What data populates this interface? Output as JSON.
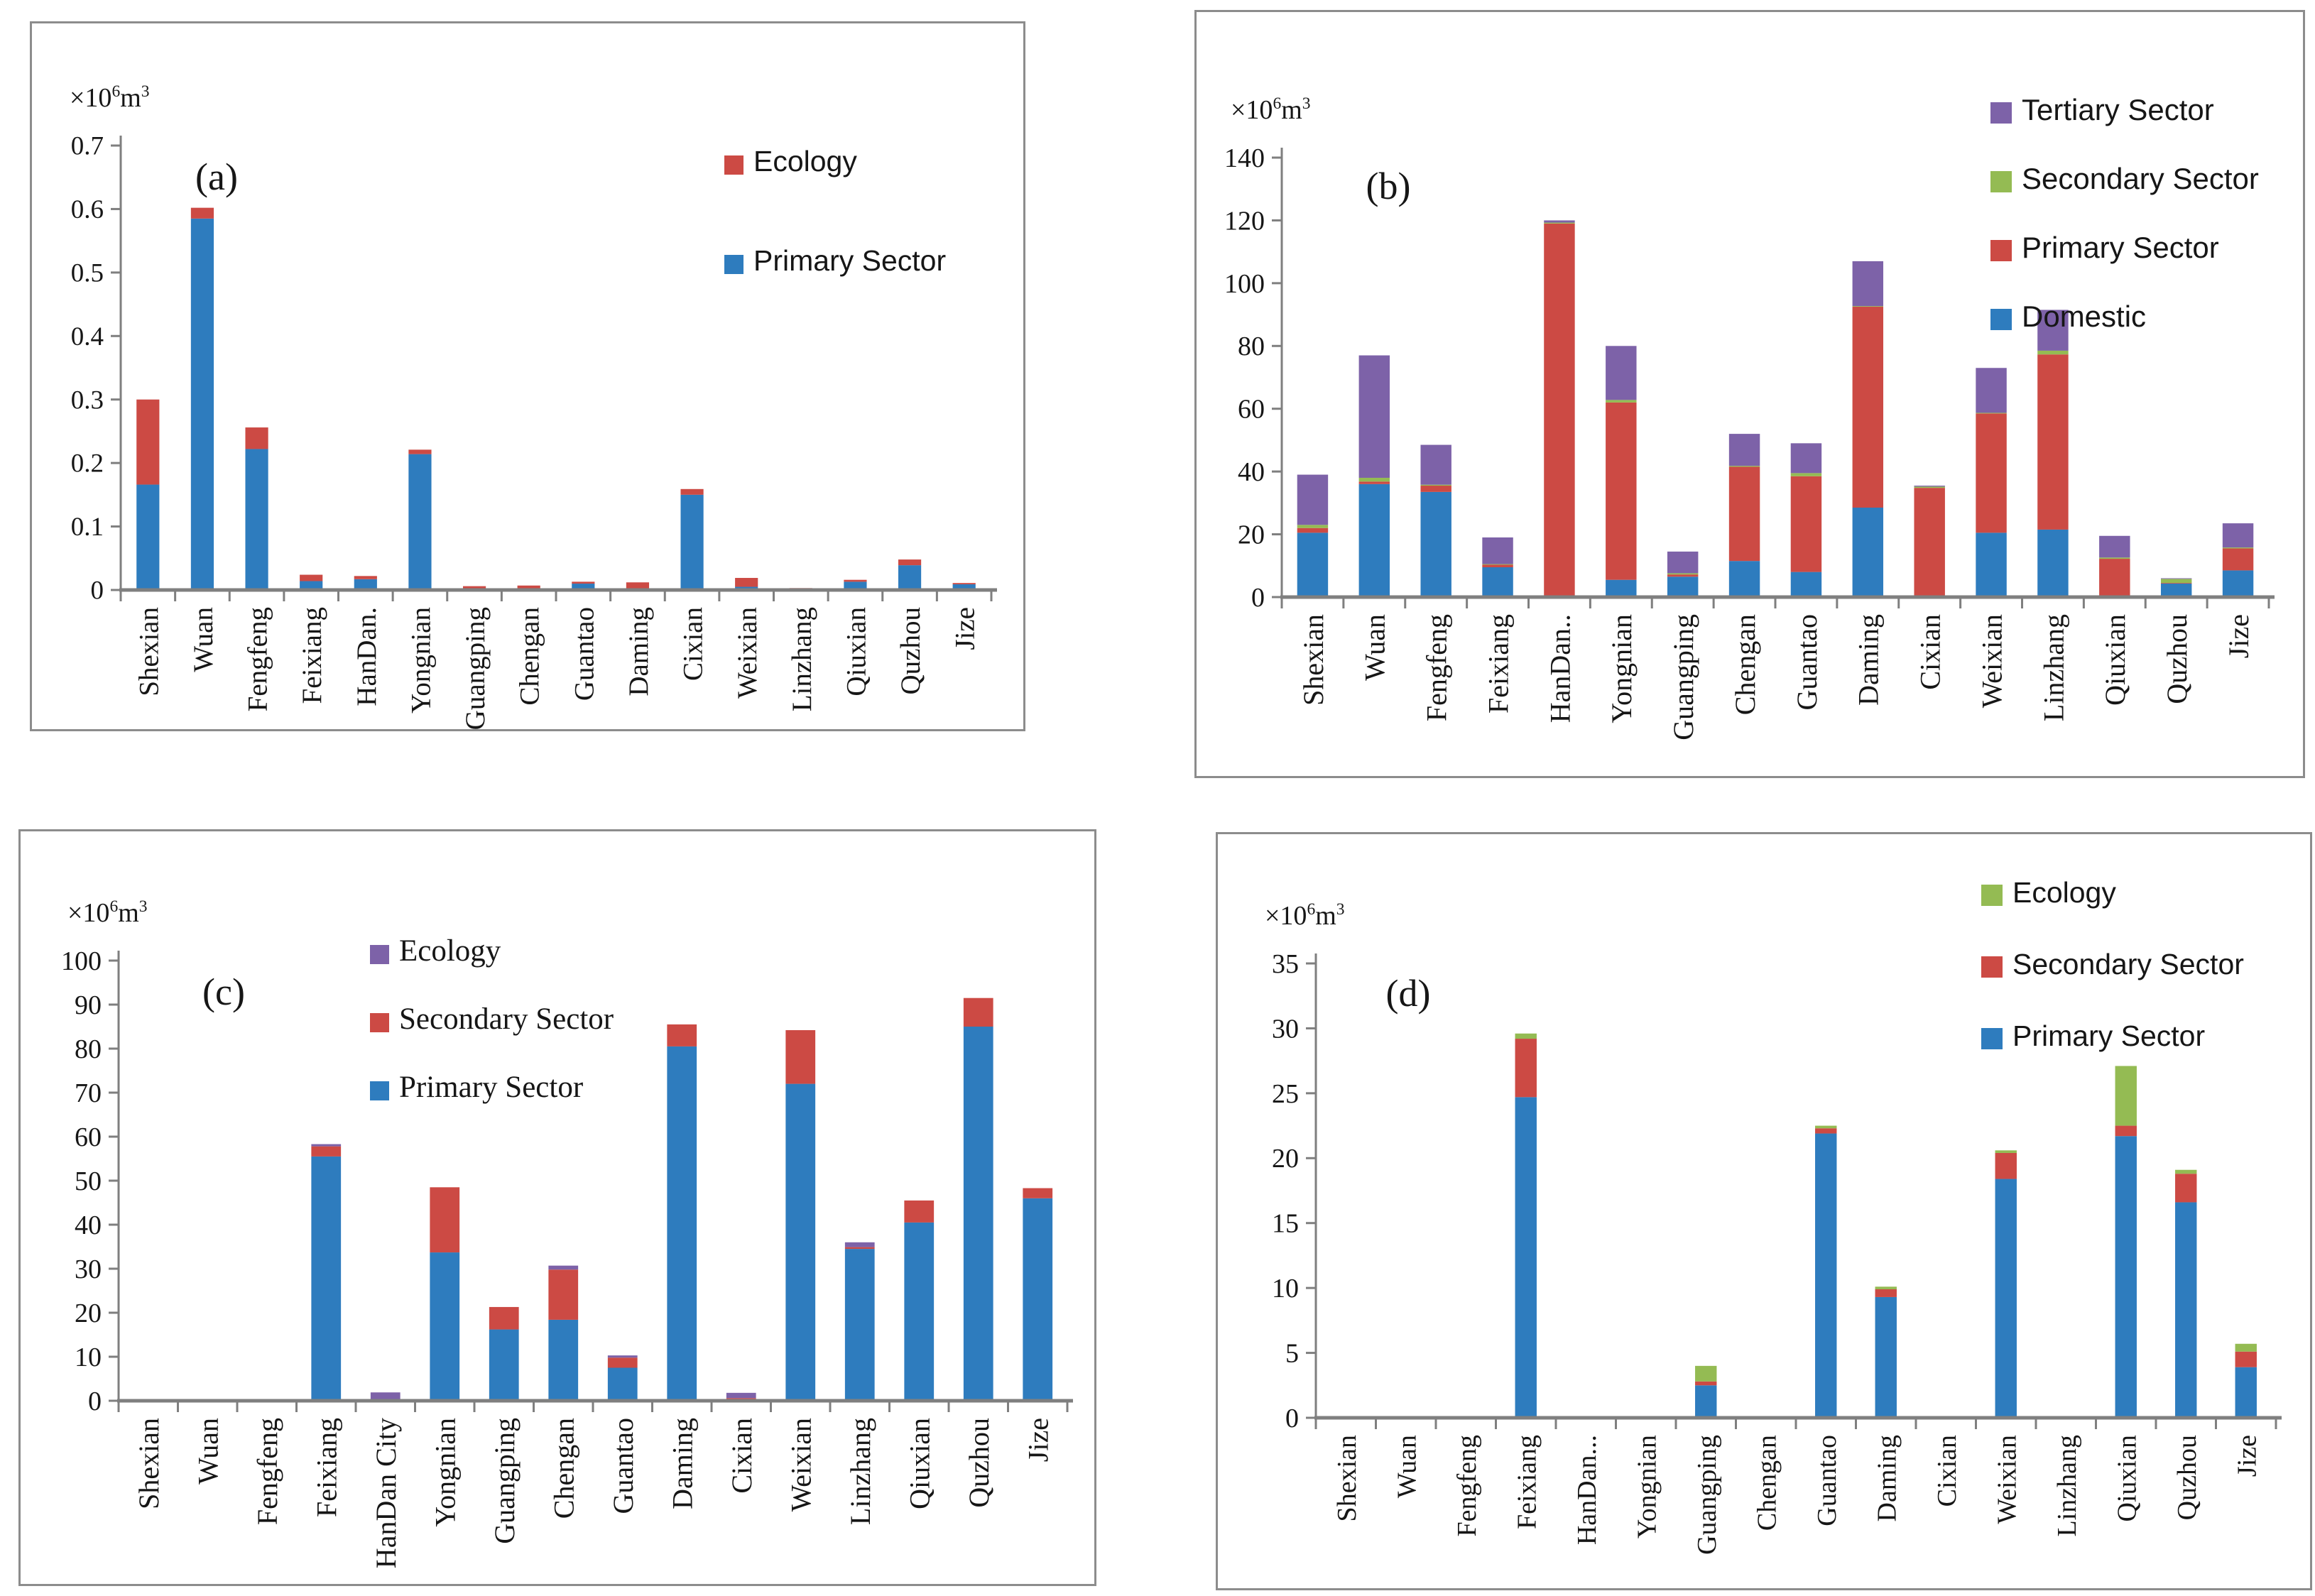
{
  "figure_title": "Water use by district, Handan (four panels)",
  "colors": {
    "primary_blue": "#2E7CBE",
    "red": "#CC4A44",
    "green": "#94BB53",
    "purple": "#7D62A8",
    "axis_gray": "#7F7F7F",
    "border_gray": "#8C8C8C"
  },
  "chart_data": [
    {
      "type": "bar",
      "stacked": true,
      "panel_label": "(a)",
      "unit": {
        "base": "×10",
        "exp": "6",
        "tail": "m",
        "exp2": "3"
      },
      "ylim": [
        0,
        0.7
      ],
      "ystep": 0.1,
      "yticks": [
        "0",
        "0.1",
        "0.2",
        "0.3",
        "0.4",
        "0.5",
        "0.6",
        "0.7"
      ],
      "categories": [
        "Shexian",
        "Wuan",
        "Fengfeng",
        "Feixiang",
        "HanDan.",
        "Yongnian",
        "Guangping",
        "Chengan",
        "Guantao",
        "Daming",
        "Cixian",
        "Weixian",
        "Linzhang",
        "Qiuxian",
        "Quzhou",
        "Jize"
      ],
      "series": [
        {
          "name": "Primary Sector",
          "color": "#2E7CBE",
          "values": [
            0.166,
            0.585,
            0.222,
            0.014,
            0.017,
            0.214,
            0.002,
            0.001,
            0.01,
            0.002,
            0.15,
            0.005,
            0.002,
            0.013,
            0.039,
            0.009
          ]
        },
        {
          "name": "Ecology",
          "color": "#CC4A44",
          "values": [
            0.134,
            0.017,
            0.034,
            0.01,
            0.005,
            0.007,
            0.004,
            0.006,
            0.003,
            0.01,
            0.009,
            0.014,
            0.001,
            0.003,
            0.009,
            0.002
          ]
        }
      ],
      "legend": [
        {
          "label": "Ecology",
          "color": "#CC4A44"
        },
        {
          "label": "Primary Sector",
          "color": "#2E7CBE"
        }
      ],
      "legend_position": "inside upper right"
    },
    {
      "type": "bar",
      "stacked": true,
      "panel_label": "(b)",
      "unit": {
        "base": "×10",
        "exp": "6",
        "tail": "m",
        "exp2": "3"
      },
      "ylim": [
        0,
        140
      ],
      "ystep": 20,
      "yticks": [
        "0",
        "20",
        "40",
        "60",
        "80",
        "100",
        "120",
        "140"
      ],
      "categories": [
        "Shexian",
        "Wuan",
        "Fengfeng",
        "Feixiang",
        "HanDan..",
        "Yongnian",
        "Guangping",
        "Chengan",
        "Guantao",
        "Daming",
        "Cixian",
        "Weixian",
        "Linzhang",
        "Qiuxian",
        "Quzhou",
        "Jize"
      ],
      "series": [
        {
          "name": "Domestic",
          "color": "#2E7CBE",
          "values": [
            20.5,
            36,
            33.5,
            9.5,
            0,
            5.5,
            6.5,
            11.5,
            8,
            28.5,
            0,
            20.5,
            21.5,
            0,
            4.3,
            8.5
          ]
        },
        {
          "name": "Primary Sector",
          "color": "#CC4A44",
          "values": [
            1.5,
            0.8,
            2.0,
            0.8,
            119.0,
            56.5,
            0.7,
            30.0,
            30.5,
            64.0,
            34.8,
            38.0,
            55.8,
            12.2,
            0.2,
            7.0
          ]
        },
        {
          "name": "Secondary Sector",
          "color": "#94BB53",
          "values": [
            1.0,
            1.2,
            0.3,
            0.2,
            0.3,
            0.8,
            0.4,
            0.3,
            1.0,
            0.2,
            0.4,
            0.2,
            1.2,
            0.4,
            1.3,
            0.3
          ]
        },
        {
          "name": "Tertiary Sector",
          "color": "#7D62A8",
          "values": [
            16.0,
            39.0,
            12.7,
            8.5,
            0.7,
            17.2,
            6.9,
            10.2,
            9.5,
            14.3,
            0.3,
            14.3,
            13.0,
            6.9,
            0.2,
            7.7
          ]
        }
      ],
      "legend": [
        {
          "label": "Tertiary Sector",
          "color": "#7D62A8"
        },
        {
          "label": "Secondary Sector",
          "color": "#94BB53"
        },
        {
          "label": "Primary Sector",
          "color": "#CC4A44"
        },
        {
          "label": "Domestic",
          "color": "#2E7CBE"
        }
      ],
      "legend_position": "inside upper right"
    },
    {
      "type": "bar",
      "stacked": true,
      "panel_label": "(c)",
      "unit": {
        "base": "×10",
        "exp": "6",
        "tail": "m",
        "exp2": "3"
      },
      "ylim": [
        0,
        100
      ],
      "ystep": 10,
      "yticks": [
        "0",
        "10",
        "20",
        "30",
        "40",
        "50",
        "60",
        "70",
        "80",
        "90",
        "100"
      ],
      "categories": [
        "Shexian",
        "Wuan",
        "Fengfeng",
        "Feixiang",
        "HanDan City",
        "Yongnian",
        "Guangping",
        "Chengan",
        "Guantao",
        "Daming",
        "Cixian",
        "Weixian",
        "Linzhang",
        "Qiuxian",
        "Quzhou",
        "Jize"
      ],
      "series": [
        {
          "name": "Primary Sector",
          "color": "#2E7CBE",
          "values": [
            0,
            0,
            0,
            55.5,
            0,
            33.7,
            16.2,
            18.4,
            7.5,
            80.5,
            0.4,
            72,
            34.5,
            40.5,
            85,
            46
          ]
        },
        {
          "name": "Secondary Sector",
          "color": "#CC4A44",
          "values": [
            0,
            0,
            0,
            2.3,
            0,
            14.8,
            5.1,
            11.4,
            2.3,
            5.0,
            0.2,
            12.2,
            0.4,
            5.0,
            6.5,
            2.3
          ]
        },
        {
          "name": "Ecology",
          "color": "#7D62A8",
          "values": [
            0,
            0,
            0,
            0.5,
            1.9,
            0,
            0,
            0.9,
            0.5,
            0,
            1.2,
            0,
            1.1,
            0,
            0,
            0
          ]
        }
      ],
      "legend": [
        {
          "label": "Ecology",
          "color": "#7D62A8"
        },
        {
          "label": "Secondary Sector",
          "color": "#CC4A44"
        },
        {
          "label": "Primary Sector",
          "color": "#2E7CBE"
        }
      ],
      "legend_position": "inside upper left-center"
    },
    {
      "type": "bar",
      "stacked": true,
      "panel_label": "(d)",
      "unit": {
        "base": "×10",
        "exp": "6",
        "tail": "m",
        "exp2": "3"
      },
      "ylim": [
        0,
        35
      ],
      "ystep": 5,
      "yticks": [
        "0",
        "5",
        "10",
        "15",
        "20",
        "25",
        "30",
        "35"
      ],
      "categories": [
        "Shexian",
        "Wuan",
        "Fengfeng",
        "Feixiang",
        "HanDan...",
        "Yongnian",
        "Guangping",
        "Chengan",
        "Guantao",
        "Daming",
        "Cixian",
        "Weixian",
        "Linzhang",
        "Qiuxian",
        "Quzhou",
        "Jize"
      ],
      "series": [
        {
          "name": "Primary Sector",
          "color": "#2E7CBE",
          "values": [
            0,
            0,
            0,
            24.7,
            0,
            0,
            2.5,
            0,
            21.9,
            9.3,
            0,
            18.4,
            0,
            21.7,
            16.6,
            3.9
          ]
        },
        {
          "name": "Secondary Sector",
          "color": "#CC4A44",
          "values": [
            0,
            0,
            0,
            4.5,
            0,
            0,
            0.3,
            0,
            0.4,
            0.6,
            0,
            2.0,
            0,
            0.8,
            2.2,
            1.2
          ]
        },
        {
          "name": "Ecology",
          "color": "#94BB53",
          "values": [
            0,
            0,
            0,
            0.4,
            0,
            0,
            1.2,
            0,
            0.2,
            0.2,
            0,
            0.2,
            0,
            4.6,
            0.3,
            0.6
          ]
        }
      ],
      "legend": [
        {
          "label": "Ecology",
          "color": "#94BB53"
        },
        {
          "label": "Secondary Sector",
          "color": "#CC4A44"
        },
        {
          "label": "Primary Sector",
          "color": "#2E7CBE"
        }
      ],
      "legend_position": "inside upper right"
    }
  ]
}
